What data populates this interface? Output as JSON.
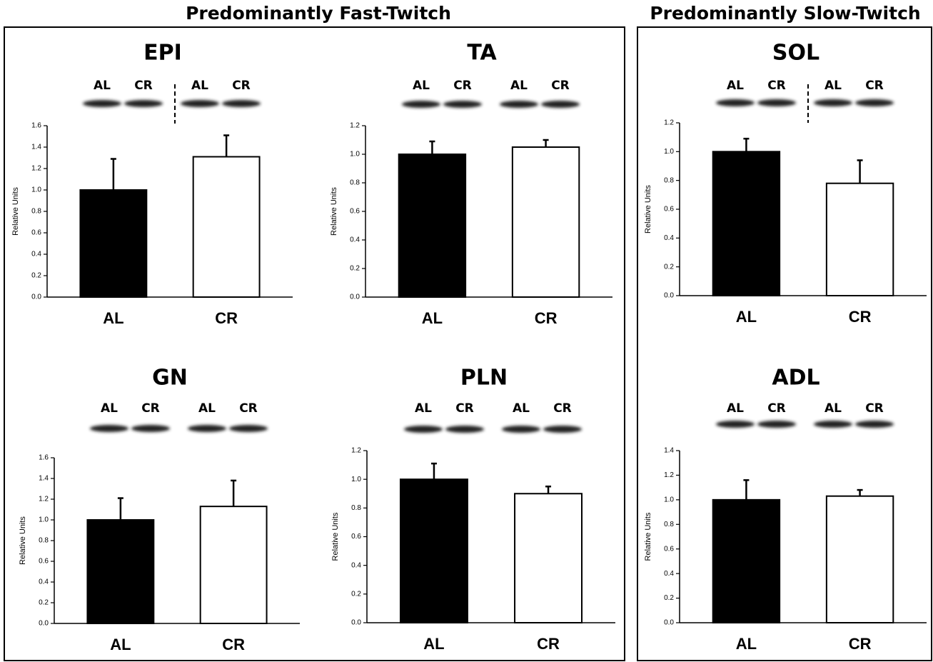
{
  "groups": [
    {
      "title": "Predominantly Fast-Twitch"
    },
    {
      "title": "Predominantly Slow-Twitch"
    }
  ],
  "chart_data": [
    {
      "type": "bar",
      "title": "EPI",
      "ylabel": "Relative Units",
      "categories": [
        "AL",
        "CR"
      ],
      "values": [
        1.0,
        1.31
      ],
      "errors": [
        0.29,
        0.2
      ],
      "colors": [
        "#000000",
        "#ffffff"
      ],
      "lanes": [
        "AL",
        "CR",
        "AL",
        "CR"
      ],
      "divider": true,
      "ylim": [
        0,
        1.6
      ],
      "yticks": [
        {
          "value": 0,
          "label": "0.0"
        },
        {
          "value": 0.2,
          "label": "0.2"
        },
        {
          "value": 0.4,
          "label": "0.4"
        },
        {
          "value": 0.6,
          "label": "0.6"
        },
        {
          "value": 0.8,
          "label": "0.8"
        },
        {
          "value": 1,
          "label": "1.0"
        },
        {
          "value": 1.2,
          "label": "1.2"
        },
        {
          "value": 1.4,
          "label": "1.4"
        },
        {
          "value": 1.6,
          "label": "1.6"
        }
      ]
    },
    {
      "type": "bar",
      "title": "TA",
      "ylabel": "Relative Units",
      "categories": [
        "AL",
        "CR"
      ],
      "values": [
        1.0,
        1.05
      ],
      "errors": [
        0.09,
        0.05
      ],
      "colors": [
        "#000000",
        "#ffffff"
      ],
      "lanes": [
        "AL",
        "CR",
        "AL",
        "CR"
      ],
      "divider": false,
      "ylim": [
        0,
        1.2
      ],
      "yticks": [
        {
          "value": 0,
          "label": "0.0"
        },
        {
          "value": 0.2,
          "label": "0.2"
        },
        {
          "value": 0.4,
          "label": "0.4"
        },
        {
          "value": 0.6,
          "label": "0.6"
        },
        {
          "value": 0.8,
          "label": "0.8"
        },
        {
          "value": 1,
          "label": "1.0"
        },
        {
          "value": 1.2,
          "label": "1.2"
        }
      ]
    },
    {
      "type": "bar",
      "title": "SOL",
      "ylabel": "Relative Units",
      "categories": [
        "AL",
        "CR"
      ],
      "values": [
        1.0,
        0.78
      ],
      "errors": [
        0.09,
        0.16
      ],
      "colors": [
        "#000000",
        "#ffffff"
      ],
      "lanes": [
        "AL",
        "CR",
        "AL",
        "CR"
      ],
      "divider": true,
      "ylim": [
        0,
        1.2
      ],
      "yticks": [
        {
          "value": 0,
          "label": "0.0"
        },
        {
          "value": 0.2,
          "label": "0.2"
        },
        {
          "value": 0.4,
          "label": "0.4"
        },
        {
          "value": 0.6,
          "label": "0.6"
        },
        {
          "value": 0.8,
          "label": "0.8"
        },
        {
          "value": 1,
          "label": "1.0"
        },
        {
          "value": 1.2,
          "label": "1.2"
        }
      ]
    },
    {
      "type": "bar",
      "title": "GN",
      "ylabel": "Relative Units",
      "categories": [
        "AL",
        "CR"
      ],
      "values": [
        1.0,
        1.13
      ],
      "errors": [
        0.21,
        0.25
      ],
      "colors": [
        "#000000",
        "#ffffff"
      ],
      "lanes": [
        "AL",
        "CR",
        "AL",
        "CR"
      ],
      "divider": false,
      "ylim": [
        0,
        1.6
      ],
      "yticks": [
        {
          "value": 0,
          "label": "0.0"
        },
        {
          "value": 0.2,
          "label": "0.2"
        },
        {
          "value": 0.4,
          "label": "0.4"
        },
        {
          "value": 0.6,
          "label": "0.6"
        },
        {
          "value": 0.8,
          "label": "0.8"
        },
        {
          "value": 1,
          "label": "1.0"
        },
        {
          "value": 1.2,
          "label": "1.2"
        },
        {
          "value": 1.4,
          "label": "1.4"
        },
        {
          "value": 1.6,
          "label": "1.6"
        }
      ]
    },
    {
      "type": "bar",
      "title": "PLN",
      "ylabel": "Relative Units",
      "categories": [
        "AL",
        "CR"
      ],
      "values": [
        1.0,
        0.9
      ],
      "errors": [
        0.11,
        0.05
      ],
      "colors": [
        "#000000",
        "#ffffff"
      ],
      "lanes": [
        "AL",
        "CR",
        "AL",
        "CR"
      ],
      "divider": false,
      "ylim": [
        0,
        1.2
      ],
      "yticks": [
        {
          "value": 0,
          "label": "0.0"
        },
        {
          "value": 0.2,
          "label": "0.2"
        },
        {
          "value": 0.4,
          "label": "0.4"
        },
        {
          "value": 0.6,
          "label": "0.6"
        },
        {
          "value": 0.8,
          "label": "0.8"
        },
        {
          "value": 1,
          "label": "1.0"
        },
        {
          "value": 1.2,
          "label": "1.2"
        }
      ]
    },
    {
      "type": "bar",
      "title": "ADL",
      "ylabel": "Relative Units",
      "categories": [
        "AL",
        "CR"
      ],
      "values": [
        1.0,
        1.03
      ],
      "errors": [
        0.16,
        0.05
      ],
      "colors": [
        "#000000",
        "#ffffff"
      ],
      "lanes": [
        "AL",
        "CR",
        "AL",
        "CR"
      ],
      "divider": false,
      "ylim": [
        0,
        1.4
      ],
      "yticks": [
        {
          "value": 0,
          "label": "0.0"
        },
        {
          "value": 0.2,
          "label": "0.2"
        },
        {
          "value": 0.4,
          "label": "0.4"
        },
        {
          "value": 0.6,
          "label": "0.6"
        },
        {
          "value": 0.8,
          "label": "0.8"
        },
        {
          "value": 1,
          "label": "1.0"
        },
        {
          "value": 1.2,
          "label": "1.2"
        },
        {
          "value": 1.4,
          "label": "1.4"
        }
      ]
    }
  ]
}
